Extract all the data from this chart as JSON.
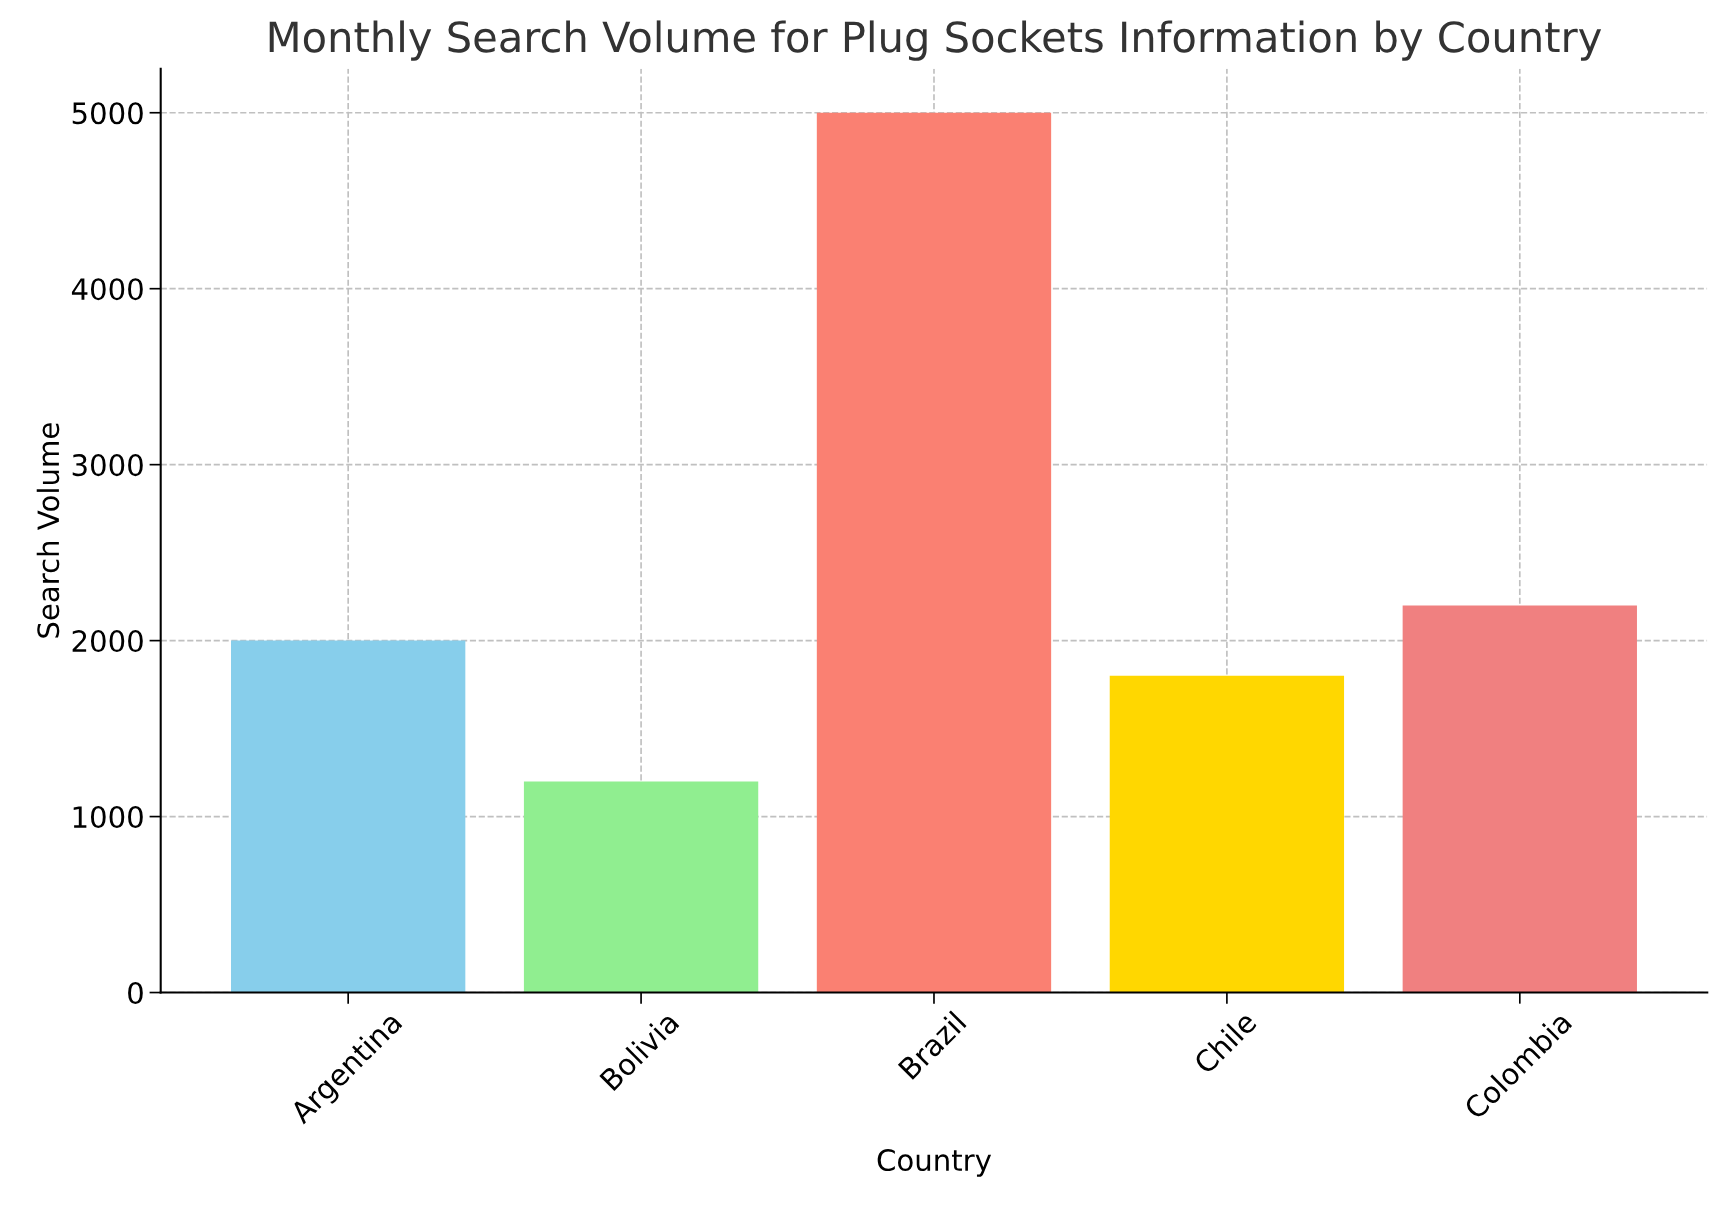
{
  "chart_data": {
    "type": "bar",
    "title": "Monthly Search Volume for Plug Sockets Information by Country",
    "xlabel": "Country",
    "ylabel": "Search Volume",
    "categories": [
      "Argentina",
      "Bolivia",
      "Brazil",
      "Chile",
      "Colombia"
    ],
    "values": [
      2000,
      1200,
      5000,
      1800,
      2200
    ],
    "colors": [
      "#87ceeb",
      "#90ee90",
      "#fa8072",
      "#ffd700",
      "#f08080"
    ],
    "ylim": [
      0,
      5250
    ],
    "yticks": [
      0,
      1000,
      2000,
      3000,
      4000,
      5000
    ],
    "grid": true,
    "line_style": "dashed"
  }
}
